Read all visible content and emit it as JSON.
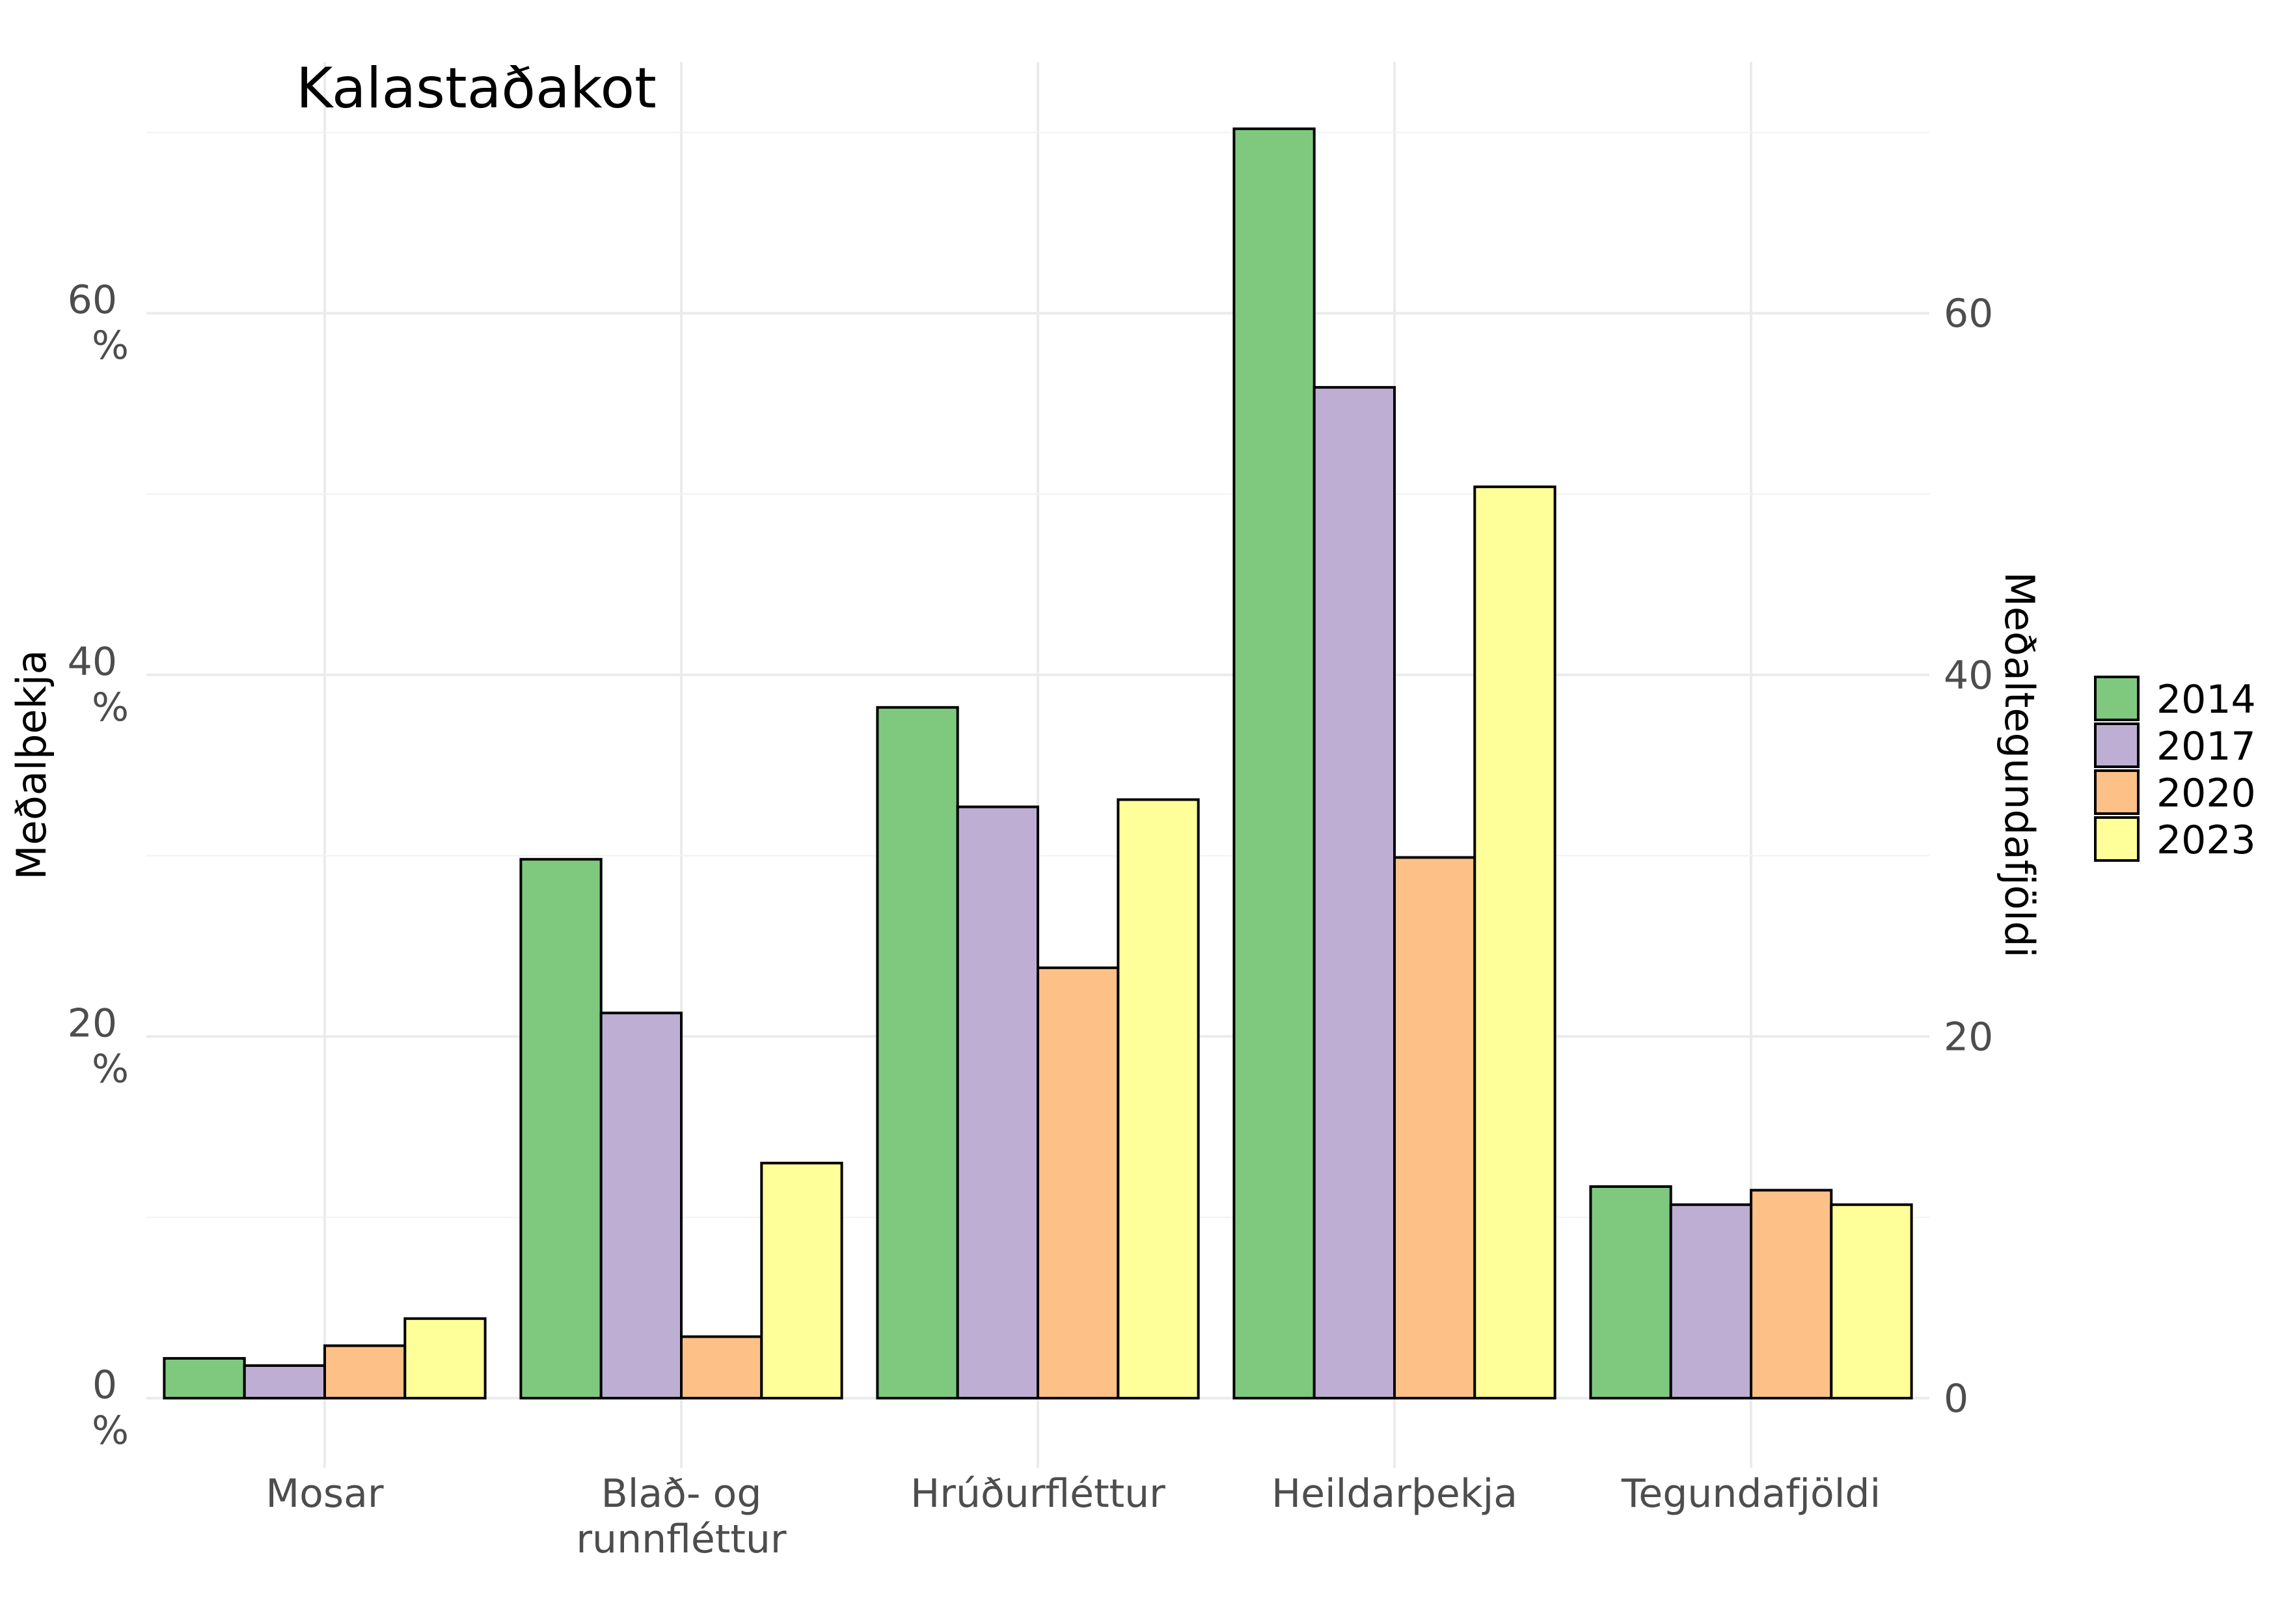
{
  "chart_data": {
    "type": "bar",
    "title": "Kalastaðakot",
    "categories": [
      "Mosar",
      "Blað- og runnfléttur",
      "Hrúðurfléttur",
      "Heildarþekja",
      "Tegundafjöldi"
    ],
    "category_lines": [
      [
        "Mosar"
      ],
      [
        "Blað- og",
        "runnfléttur"
      ],
      [
        "Hrúðurfléttur"
      ],
      [
        "Heildarþekja"
      ],
      [
        "Tegundafjöldi"
      ]
    ],
    "series": [
      {
        "name": "2014",
        "color": "#7fc97f",
        "values": [
          2.2,
          29.8,
          38.2,
          70.2,
          11.7
        ]
      },
      {
        "name": "2017",
        "color": "#beaed4",
        "values": [
          1.8,
          21.3,
          32.7,
          55.9,
          10.7
        ]
      },
      {
        "name": "2020",
        "color": "#fdc086",
        "values": [
          2.9,
          3.4,
          23.8,
          29.9,
          11.5
        ]
      },
      {
        "name": "2023",
        "color": "#ffff99",
        "values": [
          4.4,
          13.0,
          33.1,
          50.4,
          10.7
        ]
      }
    ],
    "ylabel": "Meðalþekja",
    "ylabel_right": "Meðaltegundafjöldi",
    "ylim": [
      -3,
      75
    ],
    "y_ticks_left": [
      {
        "value": 0,
        "label": [
          "0",
          "%"
        ]
      },
      {
        "value": 20,
        "label": [
          "20",
          "%"
        ]
      },
      {
        "value": 40,
        "label": [
          "40",
          "%"
        ]
      },
      {
        "value": 60,
        "label": [
          "60",
          "%"
        ]
      }
    ],
    "y_ticks_right": [
      {
        "value": 0,
        "label": "0"
      },
      {
        "value": 20,
        "label": "20"
      },
      {
        "value": 40,
        "label": "40"
      },
      {
        "value": 60,
        "label": "60"
      }
    ],
    "grid": true,
    "legend_position": "right"
  }
}
